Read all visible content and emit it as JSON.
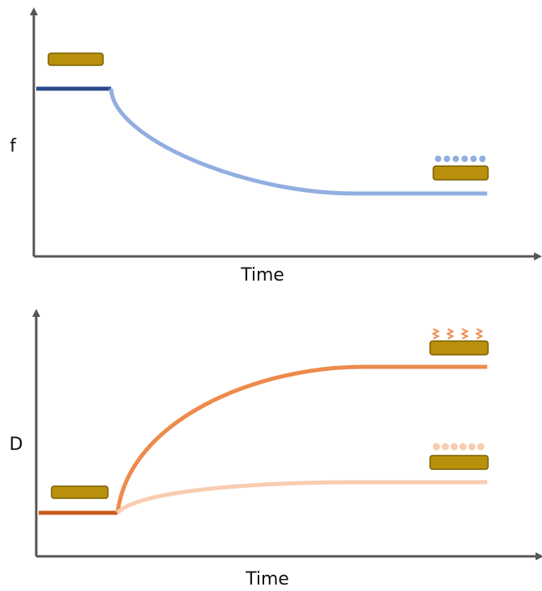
{
  "top_panel": {
    "y_label": "f",
    "x_label": "Time"
  },
  "bottom_panel": {
    "y_label": "D",
    "x_label": "Time"
  }
}
